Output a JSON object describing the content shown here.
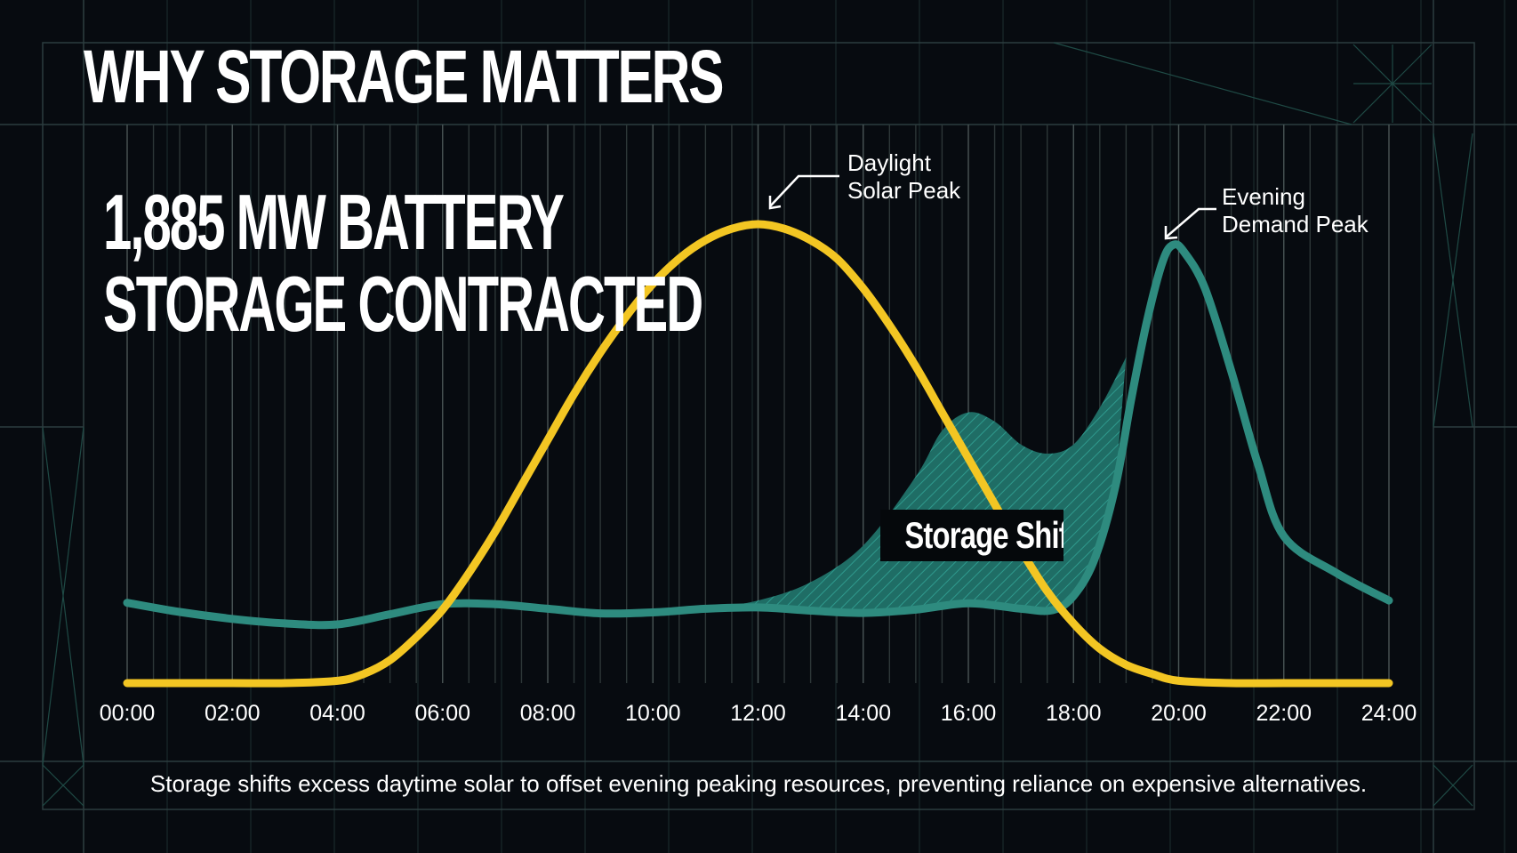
{
  "title": "WHY STORAGE MATTERS",
  "headline": {
    "line1": "1,885 MW BATTERY",
    "line2": "STORAGE CONTRACTED"
  },
  "caption": "Storage shifts excess daytime solar to offset evening peaking resources, preventing reliance on expensive alternatives.",
  "colors": {
    "background": "#070b10",
    "solar": "#f3c623",
    "demand": "#2e8b7f",
    "shift_fill": "#2a7a70",
    "text": "#ffffff"
  },
  "chart_data": {
    "type": "line",
    "x_unit": "hour",
    "xlim": [
      0,
      24
    ],
    "ylim": [
      0,
      100
    ],
    "tick_labels": [
      "00:00",
      "02:00",
      "04:00",
      "06:00",
      "08:00",
      "10:00",
      "12:00",
      "14:00",
      "16:00",
      "18:00",
      "20:00",
      "22:00",
      "24:00"
    ],
    "tick_values": [
      0,
      2,
      4,
      6,
      8,
      10,
      12,
      14,
      16,
      18,
      20,
      22,
      24
    ],
    "series": [
      {
        "name": "Solar",
        "points": [
          [
            0,
            0
          ],
          [
            1,
            0
          ],
          [
            2,
            0
          ],
          [
            3,
            0
          ],
          [
            4,
            0.5
          ],
          [
            4.5,
            2
          ],
          [
            5,
            5
          ],
          [
            5.5,
            10
          ],
          [
            6,
            16
          ],
          [
            6.5,
            24
          ],
          [
            7,
            33
          ],
          [
            7.5,
            43
          ],
          [
            8,
            53
          ],
          [
            8.5,
            63
          ],
          [
            9,
            72
          ],
          [
            9.5,
            80
          ],
          [
            10,
            87
          ],
          [
            10.5,
            92.5
          ],
          [
            11,
            96.5
          ],
          [
            11.5,
            99
          ],
          [
            12,
            100
          ],
          [
            12.5,
            99
          ],
          [
            13,
            96.5
          ],
          [
            13.5,
            92.5
          ],
          [
            14,
            86
          ],
          [
            14.5,
            78
          ],
          [
            15,
            69
          ],
          [
            15.5,
            59
          ],
          [
            16,
            49
          ],
          [
            16.5,
            39
          ],
          [
            17,
            29
          ],
          [
            17.5,
            20
          ],
          [
            18,
            13
          ],
          [
            18.5,
            7.5
          ],
          [
            19,
            4
          ],
          [
            19.5,
            2
          ],
          [
            20,
            0.5
          ],
          [
            21,
            0
          ],
          [
            22,
            0
          ],
          [
            23,
            0
          ],
          [
            24,
            0
          ]
        ]
      },
      {
        "name": "Demand",
        "points": [
          [
            0,
            17.5
          ],
          [
            1,
            15.5
          ],
          [
            2,
            14
          ],
          [
            3,
            13
          ],
          [
            4,
            12.8
          ],
          [
            5,
            15
          ],
          [
            6,
            17.2
          ],
          [
            7,
            17.2
          ],
          [
            8,
            16.2
          ],
          [
            9,
            15.2
          ],
          [
            10,
            15.4
          ],
          [
            11,
            16.2
          ],
          [
            12,
            16.5
          ],
          [
            13,
            15.8
          ],
          [
            14,
            15.3
          ],
          [
            15,
            16
          ],
          [
            16,
            17.4
          ],
          [
            17,
            16.2
          ],
          [
            17.6,
            15.9
          ],
          [
            18,
            19
          ],
          [
            18.4,
            27
          ],
          [
            18.8,
            43
          ],
          [
            19.1,
            62
          ],
          [
            19.4,
            79
          ],
          [
            19.7,
            92
          ],
          [
            19.9,
            95.5
          ],
          [
            20.1,
            94
          ],
          [
            20.5,
            86
          ],
          [
            21,
            68
          ],
          [
            21.5,
            48
          ],
          [
            22,
            32
          ],
          [
            23,
            24
          ],
          [
            24,
            18
          ]
        ]
      },
      {
        "name": "Storage Shift",
        "style": "hatched-area",
        "upper_points": [
          [
            11,
            16.2
          ],
          [
            12,
            18
          ],
          [
            13,
            22
          ],
          [
            14,
            30
          ],
          [
            15,
            45
          ],
          [
            15.5,
            55
          ],
          [
            16,
            59
          ],
          [
            16.5,
            57
          ],
          [
            17,
            52
          ],
          [
            17.5,
            50
          ],
          [
            18,
            52
          ],
          [
            18.5,
            60
          ],
          [
            19,
            71
          ]
        ]
      }
    ],
    "annotations": [
      {
        "line1": "Daylight",
        "line2": "Solar Peak",
        "x": 12,
        "y": 100,
        "series": "Solar"
      },
      {
        "line1": "Evening",
        "line2": "Demand Peak",
        "x": 19.9,
        "y": 95.5,
        "series": "Demand"
      },
      {
        "text": "Storage Shift",
        "series": "Storage Shift"
      }
    ]
  }
}
